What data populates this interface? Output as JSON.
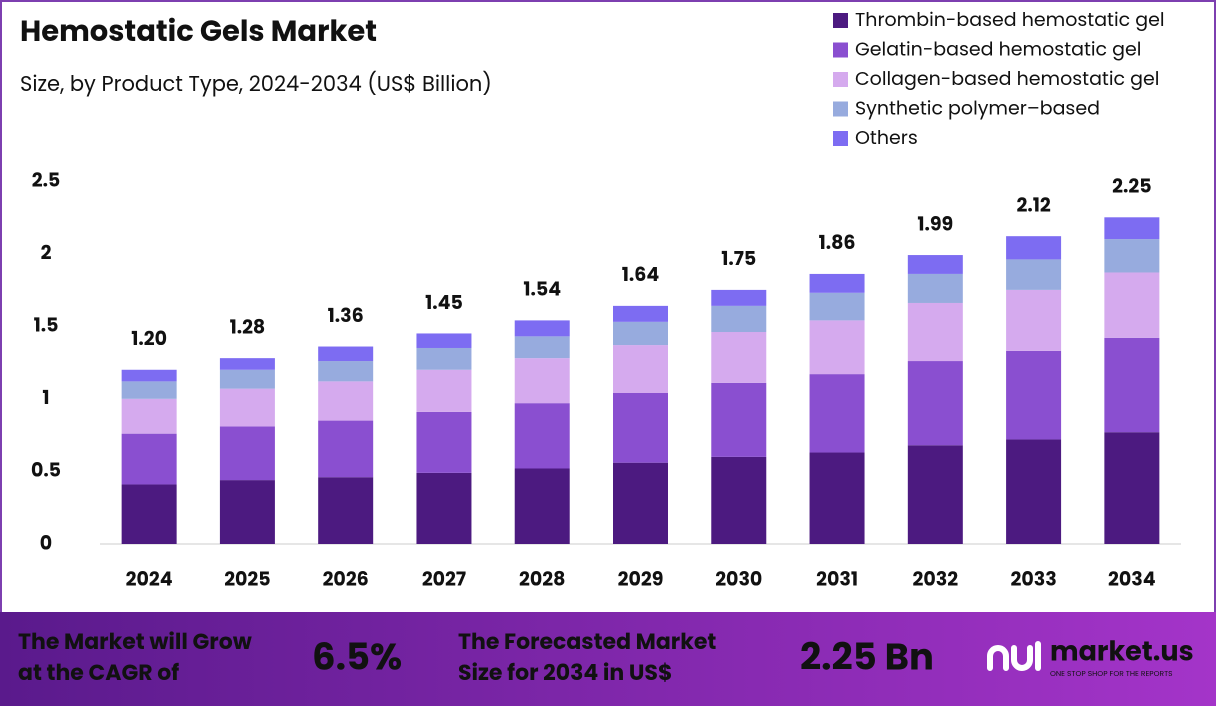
{
  "chart_data": {
    "type": "stacked-bar",
    "title": "Hemostatic Gels Market",
    "subtitle": "Size, by Product Type, 2024-2034 (US$ Billion)",
    "categories": [
      "2024",
      "2025",
      "2026",
      "2027",
      "2028",
      "2029",
      "2030",
      "2031",
      "2032",
      "2033",
      "2034"
    ],
    "series": [
      {
        "name": "Thrombin-based hemostatic gel",
        "color": "#4c1a80",
        "values": [
          0.41,
          0.44,
          0.46,
          0.49,
          0.52,
          0.56,
          0.6,
          0.63,
          0.68,
          0.72,
          0.77
        ]
      },
      {
        "name": "Gelatin-based hemostatic gel",
        "color": "#8a4fd0",
        "values": [
          0.35,
          0.37,
          0.39,
          0.42,
          0.45,
          0.48,
          0.51,
          0.54,
          0.58,
          0.61,
          0.65
        ]
      },
      {
        "name": "Collagen-based hemostatic gel",
        "color": "#d5aaee",
        "values": [
          0.24,
          0.26,
          0.27,
          0.29,
          0.31,
          0.33,
          0.35,
          0.37,
          0.4,
          0.42,
          0.45
        ]
      },
      {
        "name": "Synthetic polymer–based",
        "color": "#97abde",
        "values": [
          0.12,
          0.13,
          0.14,
          0.15,
          0.15,
          0.16,
          0.18,
          0.19,
          0.2,
          0.21,
          0.23
        ]
      },
      {
        "name": "Others",
        "color": "#7d6cf2",
        "values": [
          0.08,
          0.08,
          0.1,
          0.1,
          0.11,
          0.11,
          0.11,
          0.13,
          0.13,
          0.16,
          0.15
        ]
      }
    ],
    "totals": [
      1.2,
      1.28,
      1.36,
      1.45,
      1.54,
      1.64,
      1.75,
      1.86,
      1.99,
      2.12,
      2.25
    ],
    "total_labels": [
      "1.20",
      "1.28",
      "1.36",
      "1.45",
      "1.54",
      "1.64",
      "1.75",
      "1.86",
      "1.99",
      "2.12",
      "2.25"
    ],
    "ylim": [
      0,
      2.5
    ],
    "yticks": [
      0,
      0.5,
      1,
      1.5,
      2,
      2.5
    ],
    "legend": "top-right"
  },
  "footer": {
    "cagr_label": [
      "The Market will Grow",
      "at the CAGR of"
    ],
    "cagr_value": "6.5%",
    "forecast_label": [
      "The Forecasted Market",
      "Size for 2034 in US$"
    ],
    "forecast_value": "2.25 Bn",
    "brand": "market.us",
    "tagline": "ONE STOP SHOP FOR THE REPORTS"
  }
}
